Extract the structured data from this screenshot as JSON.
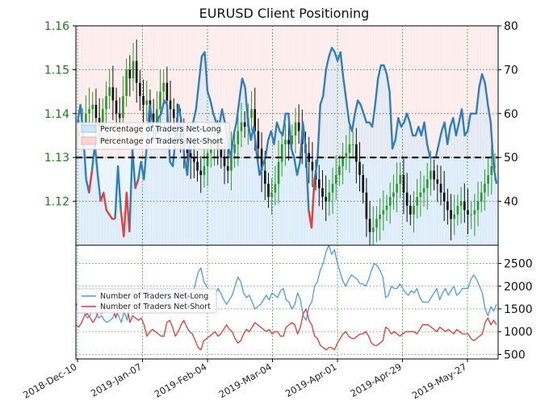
{
  "chart_data": [
    {
      "type": "line",
      "title": "EURUSD Client Positioning",
      "x_tick_labels": [
        "2018-Dec-10",
        "2019-Jan-07",
        "2019-Feb-04",
        "2019-Mar-04",
        "2019-Apr-01",
        "2019-Apr-29",
        "2019-May-27"
      ],
      "left_axis": {
        "ticks": [
          "1.16",
          "1.15",
          "1.14",
          "1.13",
          "1.12"
        ],
        "ylim": [
          1.11,
          1.16
        ],
        "color": "#1a7a1a"
      },
      "right_axis": {
        "ticks": [
          "80",
          "70",
          "60",
          "50",
          "40"
        ],
        "ylim": [
          30,
          80
        ]
      },
      "grid": true,
      "reference_line": 50,
      "legend": {
        "placement": "left",
        "entries": [
          "Percentage of Traders Net-Long",
          "Percentage of Traders Net-Short"
        ]
      },
      "colors": {
        "net_long": "#2f7fbf",
        "net_short": "#e8413a",
        "candle_up": "#2a9a2a",
        "candle_down": "#111111",
        "long_fill": "#cfe6f7",
        "short_fill": "#fbd6d2"
      },
      "series": [
        {
          "name": "Percentage of Traders Net-Long",
          "values": [
            58,
            62,
            55,
            45,
            42,
            47,
            53,
            46,
            40,
            42,
            38,
            37,
            36,
            36,
            48,
            38,
            32,
            42,
            33,
            52,
            43,
            45,
            49,
            45,
            53,
            62,
            58,
            55,
            59,
            60,
            63,
            62,
            49,
            48,
            55,
            62,
            58,
            50,
            46,
            55,
            58,
            61,
            67,
            73,
            74,
            65,
            63,
            60,
            58,
            57,
            61,
            58,
            53,
            50,
            55,
            58,
            63,
            68,
            66,
            58,
            54,
            57,
            51,
            46,
            48,
            50,
            54,
            56,
            53,
            58,
            56,
            55,
            60,
            60,
            52,
            50,
            46,
            49,
            58,
            52,
            38,
            34,
            45,
            49,
            62,
            64,
            70,
            73,
            75,
            74,
            72,
            74,
            68,
            63,
            58,
            56,
            60,
            63,
            62,
            60,
            58,
            58,
            57,
            62,
            68,
            71,
            71,
            69,
            65,
            52,
            54,
            59,
            57,
            58,
            60,
            58,
            55,
            55,
            57,
            55,
            58,
            53,
            50,
            50,
            50,
            53,
            56,
            58,
            53,
            57,
            59,
            55,
            58,
            61,
            55,
            56,
            60,
            60,
            60,
            66,
            69,
            67,
            62,
            58,
            48,
            44
          ]
        },
        {
          "name": "Percentage of Traders Net-Short",
          "values": [
            42,
            38,
            45,
            55,
            58,
            53,
            47,
            54,
            60,
            58,
            62,
            63,
            64,
            64,
            52,
            62,
            68,
            58,
            67,
            48,
            57,
            55,
            51,
            55,
            47,
            38,
            42,
            45,
            41,
            40,
            37,
            38,
            51,
            52,
            45,
            38,
            42,
            50,
            54,
            45,
            42,
            39,
            33,
            27,
            26,
            35,
            37,
            40,
            42,
            43,
            39,
            42,
            47,
            50,
            45,
            42,
            37,
            32,
            34,
            42,
            46,
            43,
            49,
            54,
            52,
            50,
            46,
            44,
            47,
            42,
            44,
            45,
            40,
            40,
            48,
            50,
            54,
            51,
            42,
            48,
            62,
            66,
            55,
            51,
            38,
            36,
            30,
            27,
            25,
            26,
            28,
            26,
            32,
            37,
            42,
            44,
            40,
            37,
            38,
            40,
            42,
            42,
            43,
            38,
            32,
            29,
            29,
            31,
            35,
            48,
            46,
            41,
            43,
            42,
            40,
            42,
            45,
            45,
            43,
            45,
            42,
            47,
            50,
            50,
            50,
            47,
            44,
            42,
            47,
            43,
            41,
            45,
            42,
            39,
            45,
            44,
            40,
            40,
            40,
            34,
            31,
            33,
            38,
            42,
            52,
            56
          ]
        }
      ],
      "ohlc_close": [
        1.136,
        1.138,
        1.14,
        1.141,
        1.142,
        1.139,
        1.137,
        1.141,
        1.144,
        1.146,
        1.143,
        1.14,
        1.139,
        1.144,
        1.15,
        1.148,
        1.152,
        1.147,
        1.144,
        1.142,
        1.143,
        1.14,
        1.138,
        1.141,
        1.145,
        1.147,
        1.143,
        1.141,
        1.139,
        1.137,
        1.134,
        1.132,
        1.131,
        1.13,
        1.129,
        1.127,
        1.126,
        1.128,
        1.131,
        1.133,
        1.134,
        1.132,
        1.13,
        1.128,
        1.127,
        1.131,
        1.133,
        1.136,
        1.138,
        1.137,
        1.139,
        1.141,
        1.136,
        1.132,
        1.127,
        1.124,
        1.121,
        1.122,
        1.124,
        1.129,
        1.133,
        1.134,
        1.133,
        1.135,
        1.138,
        1.136,
        1.133,
        1.131,
        1.129,
        1.127,
        1.125,
        1.123,
        1.121,
        1.12,
        1.122,
        1.124,
        1.126,
        1.128,
        1.13,
        1.131,
        1.133,
        1.133,
        1.129,
        1.126,
        1.122,
        1.116,
        1.113,
        1.114,
        1.116,
        1.117,
        1.118,
        1.119,
        1.121,
        1.122,
        1.124,
        1.126,
        1.122,
        1.119,
        1.117,
        1.119,
        1.121,
        1.122,
        1.123,
        1.125,
        1.127,
        1.125,
        1.124,
        1.122,
        1.12,
        1.118,
        1.116,
        1.117,
        1.119,
        1.12,
        1.118,
        1.117,
        1.117,
        1.118,
        1.12,
        1.122,
        1.124,
        1.126,
        1.128,
        1.128
      ]
    },
    {
      "type": "line",
      "title": "",
      "right_axis": {
        "ticks": [
          "2500",
          "2000",
          "1500",
          "1000",
          "500"
        ],
        "ylim": [
          400,
          2900
        ]
      },
      "grid": true,
      "legend": {
        "placement": "left",
        "entries": [
          "Number of Traders Net-Long",
          "Number of Traders Net-Short"
        ]
      },
      "colors": {
        "net_long": "#4a9be6",
        "net_short": "#e23a33"
      },
      "series": [
        {
          "name": "Number of Traders Net-Long",
          "values": [
            1550,
            1700,
            1500,
            1400,
            1300,
            1350,
            1600,
            1450,
            1300,
            1350,
            1250,
            1200,
            1250,
            1300,
            1500,
            1350,
            1200,
            1450,
            1250,
            1650,
            1400,
            1450,
            1550,
            1450,
            1600,
            1850,
            1750,
            1650,
            1700,
            1800,
            1900,
            1850,
            1550,
            1500,
            1650,
            1850,
            1750,
            1550,
            1450,
            1650,
            1750,
            1800,
            2050,
            2300,
            2400,
            2100,
            2000,
            1900,
            1850,
            1800,
            1950,
            1850,
            1700,
            1600,
            1700,
            1800,
            2000,
            2200,
            2100,
            1850,
            1750,
            1800,
            1650,
            1500,
            1550,
            1600,
            1700,
            1800,
            1700,
            1850,
            1800,
            1750,
            1900,
            1950,
            1700,
            1650,
            1500,
            1600,
            1850,
            1700,
            1350,
            1250,
            1550,
            1650,
            2000,
            2100,
            2350,
            2500,
            2750,
            2900,
            2700,
            2800,
            2500,
            2300,
            2100,
            2000,
            2150,
            2250,
            2200,
            2150,
            2050,
            2050,
            2000,
            2150,
            2350,
            2500,
            2450,
            2350,
            2200,
            1750,
            1800,
            2000,
            1950,
            1950,
            2050,
            1950,
            1850,
            1800,
            1900,
            1850,
            1950,
            1750,
            1650,
            1650,
            1650,
            1750,
            1850,
            1950,
            1700,
            1850,
            1950,
            1800,
            1900,
            2000,
            1800,
            1850,
            1950,
            1950,
            1950,
            2150,
            2250,
            2150,
            2000,
            1850,
            1500,
            1350,
            1550,
            1450,
            1600
          ]
        },
        {
          "name": "Number of Traders Net-Short",
          "values": [
            1150,
            1100,
            1200,
            1350,
            1400,
            1300,
            1200,
            1300,
            1450,
            1400,
            1500,
            1500,
            1550,
            1550,
            1300,
            1500,
            1600,
            1400,
            1550,
            1200,
            1350,
            1300,
            1250,
            1300,
            1150,
            900,
            1000,
            1050,
            1000,
            950,
            900,
            900,
            1200,
            1250,
            1100,
            900,
            1000,
            1150,
            1250,
            1100,
            1000,
            950,
            800,
            650,
            600,
            800,
            850,
            900,
            950,
            1000,
            900,
            950,
            1050,
            1150,
            1050,
            1000,
            850,
            750,
            800,
            950,
            1050,
            1000,
            1100,
            1200,
            1150,
            1100,
            1050,
            1000,
            1050,
            950,
            1000,
            1000,
            900,
            900,
            1100,
            1150,
            1200,
            1150,
            950,
            1100,
            1400,
            1500,
            1250,
            1150,
            900,
            850,
            700,
            650,
            600,
            650,
            650,
            600,
            750,
            850,
            950,
            1000,
            900,
            850,
            850,
            900,
            950,
            950,
            1000,
            900,
            750,
            700,
            700,
            750,
            800,
            1100,
            1050,
            950,
            1000,
            950,
            900,
            950,
            1000,
            1000,
            1000,
            1000,
            950,
            1050,
            1150,
            1150,
            1150,
            1100,
            1050,
            1000,
            1100,
            1050,
            1000,
            1050,
            1000,
            950,
            1050,
            1000,
            950,
            950,
            950,
            850,
            800,
            850,
            900,
            950,
            1200,
            1300,
            1150,
            1250,
            1150
          ]
        }
      ]
    }
  ]
}
